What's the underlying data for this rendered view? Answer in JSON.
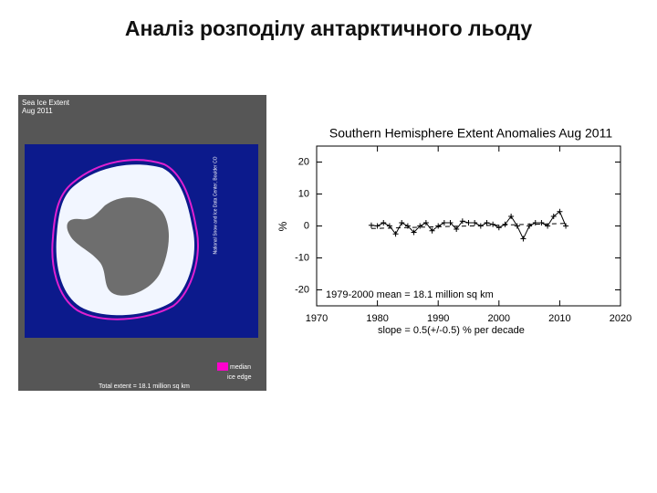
{
  "slide": {
    "title": "Аналіз розподілу антарктичного льоду"
  },
  "map": {
    "title": "Sea Ice Extent",
    "date": "Aug 2011",
    "legend_median": "median",
    "legend_edge": "ice edge",
    "total": "Total extent = 18.1 million sq km",
    "credit": "National Snow and Ice Data Center, Boulder CO"
  },
  "chart_data": {
    "type": "line",
    "title": "Southern Hemisphere Extent Anomalies Aug 2011",
    "y_label": "%",
    "x": [
      1979,
      1980,
      1981,
      1982,
      1983,
      1984,
      1985,
      1986,
      1987,
      1988,
      1989,
      1990,
      1991,
      1992,
      1993,
      1994,
      1995,
      1996,
      1997,
      1998,
      1999,
      2000,
      2001,
      2002,
      2003,
      2004,
      2005,
      2006,
      2007,
      2008,
      2009,
      2010,
      2011
    ],
    "series": [
      {
        "color": "#000000",
        "values": [
          0.2,
          0,
          1,
          0,
          -2.5,
          1,
          0,
          -2,
          0,
          1,
          -1.5,
          0,
          1,
          1,
          -1,
          1.5,
          1,
          1,
          0,
          1,
          0.5,
          -0.5,
          0.5,
          3,
          0,
          -4,
          0,
          1,
          1,
          0,
          3,
          4.5,
          0
        ]
      }
    ],
    "trend_line": {
      "x": [
        1979,
        2011
      ],
      "values": [
        -0.8,
        0.8
      ]
    },
    "annotations": [
      "1979-2000 mean =  18.1 million sq km",
      "slope =    0.5(+/-0.5) % per decade"
    ],
    "xlim": [
      1970,
      2020
    ],
    "xticks": [
      1970,
      1980,
      1990,
      2000,
      2010,
      2020
    ],
    "ylim": [
      -25,
      25
    ],
    "yticks": [
      -20,
      -10,
      0,
      10,
      20
    ]
  }
}
